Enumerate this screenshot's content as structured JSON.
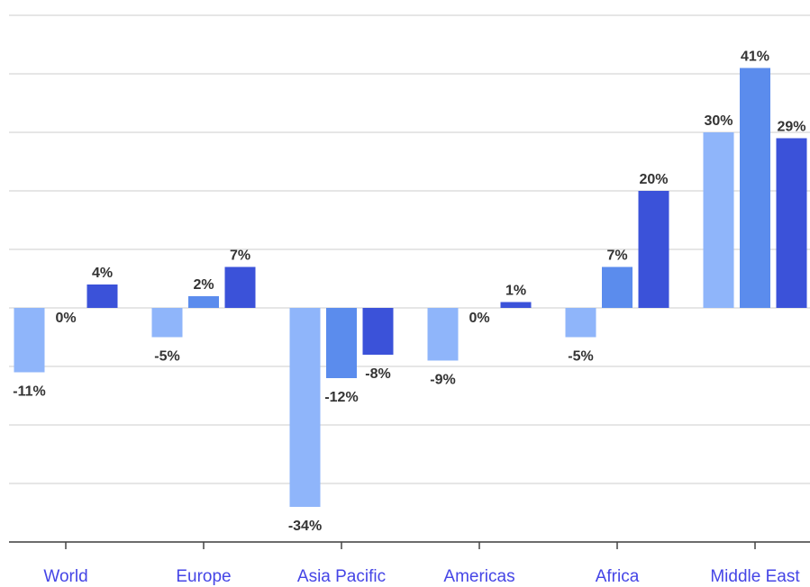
{
  "chart_data": {
    "type": "bar",
    "categories": [
      "World",
      "Europe",
      "Asia Pacific",
      "Americas",
      "Africa",
      "Middle East"
    ],
    "series": [
      {
        "color": "#8fb5fa",
        "values": [
          -11,
          -5,
          -34,
          -9,
          -5,
          30
        ],
        "value_labels": [
          "-11%",
          "-5%",
          "-34%",
          "-9%",
          "-5%",
          "30%"
        ]
      },
      {
        "color": "#5b8ced",
        "values": [
          0,
          2,
          -12,
          0,
          7,
          41
        ],
        "value_labels": [
          "0%",
          "2%",
          "-12%",
          "0%",
          "7%",
          "41%"
        ]
      },
      {
        "color": "#3b52d9",
        "values": [
          4,
          7,
          -8,
          1,
          20,
          29
        ],
        "value_labels": [
          "4%",
          "7%",
          "-8%",
          "1%",
          "20%",
          "29%"
        ]
      }
    ],
    "ylim": [
      -40,
      50
    ],
    "yticks": [
      -40,
      -30,
      -20,
      -10,
      0,
      10,
      20,
      30,
      40,
      50
    ],
    "grid": true
  }
}
